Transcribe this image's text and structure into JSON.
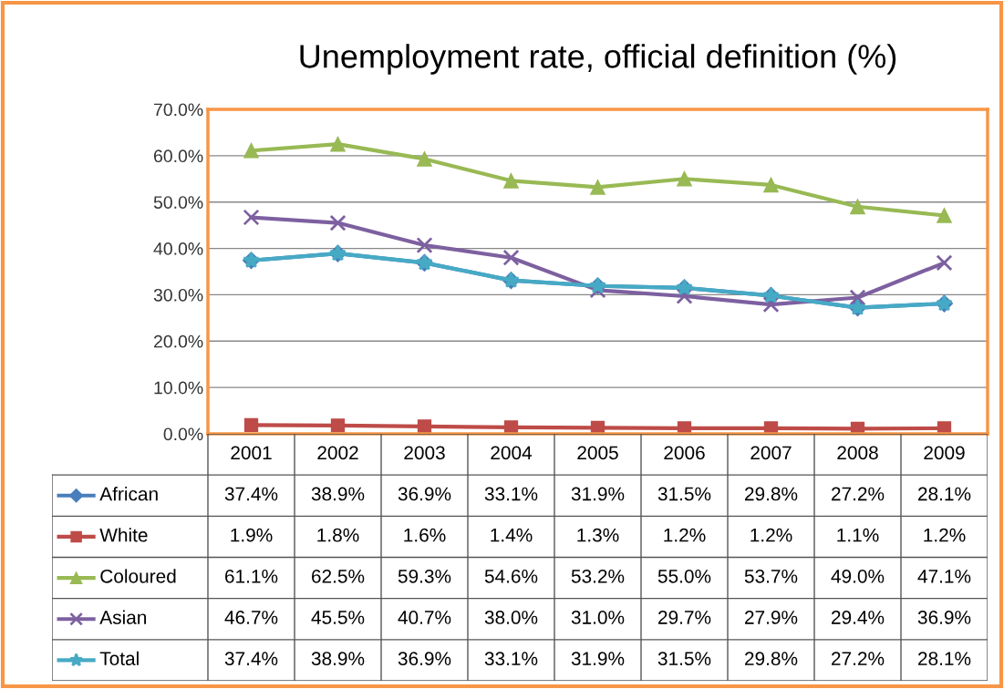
{
  "chart_data": {
    "type": "line",
    "title": "Unemployment rate, official definition (%)",
    "categories": [
      "2001",
      "2002",
      "2003",
      "2004",
      "2005",
      "2006",
      "2007",
      "2008",
      "2009"
    ],
    "ylim": [
      0,
      70
    ],
    "yticks": [
      {
        "value": 0,
        "label": "0.0%"
      },
      {
        "value": 10,
        "label": "10.0%"
      },
      {
        "value": 20,
        "label": "20.0%"
      },
      {
        "value": 30,
        "label": "30.0%"
      },
      {
        "value": 40,
        "label": "40.0%"
      },
      {
        "value": 50,
        "label": "50.0%"
      },
      {
        "value": 60,
        "label": "60.0%"
      },
      {
        "value": 70,
        "label": "70.0%"
      }
    ],
    "grid": "y",
    "legend": "bottom",
    "tick_labels": "y",
    "series": [
      {
        "name": "African",
        "color": "#4a7ebb",
        "marker": "diamond",
        "values": [
          37.4,
          38.9,
          36.9,
          33.1,
          31.9,
          31.5,
          29.8,
          27.2,
          28.1
        ],
        "value_labels": [
          "37.4%",
          "38.9%",
          "36.9%",
          "33.1%",
          "31.9%",
          "31.5%",
          "29.8%",
          "27.2%",
          "28.1%"
        ]
      },
      {
        "name": "White",
        "color": "#be4b48",
        "marker": "square",
        "values": [
          1.9,
          1.8,
          1.6,
          1.4,
          1.3,
          1.2,
          1.2,
          1.1,
          1.2
        ],
        "value_labels": [
          "1.9%",
          "1.8%",
          "1.6%",
          "1.4%",
          "1.3%",
          "1.2%",
          "1.2%",
          "1.1%",
          "1.2%"
        ]
      },
      {
        "name": "Coloured",
        "color": "#98b954",
        "marker": "triangle",
        "values": [
          61.1,
          62.5,
          59.3,
          54.6,
          53.2,
          55.0,
          53.7,
          49.0,
          47.1
        ],
        "value_labels": [
          "61.1%",
          "62.5%",
          "59.3%",
          "54.6%",
          "53.2%",
          "55.0%",
          "53.7%",
          "49.0%",
          "47.1%"
        ]
      },
      {
        "name": "Asian",
        "color": "#7d60a0",
        "marker": "cross",
        "values": [
          46.7,
          45.5,
          40.7,
          38.0,
          31.0,
          29.7,
          27.9,
          29.4,
          36.9
        ],
        "value_labels": [
          "46.7%",
          "45.5%",
          "40.7%",
          "38.0%",
          "31.0%",
          "29.7%",
          "27.9%",
          "29.4%",
          "36.9%"
        ]
      },
      {
        "name": "Total",
        "color": "#46aac5",
        "marker": "star",
        "values": [
          37.4,
          38.9,
          36.9,
          33.1,
          31.9,
          31.5,
          29.8,
          27.2,
          28.1
        ],
        "value_labels": [
          "37.4%",
          "38.9%",
          "36.9%",
          "33.1%",
          "31.9%",
          "31.5%",
          "29.8%",
          "27.2%",
          "28.1%"
        ]
      }
    ]
  }
}
